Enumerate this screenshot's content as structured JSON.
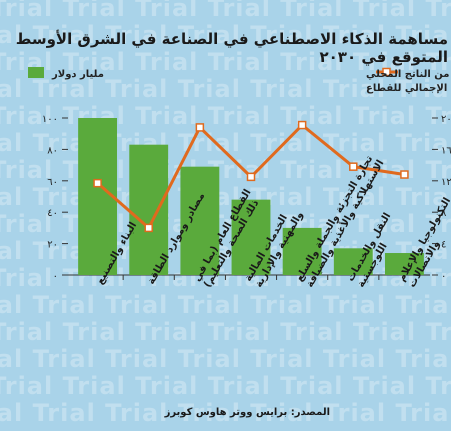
{
  "watermark": "Trial",
  "title": "مساهمة الذكاء الاصطناعي في الصناعة في الشرق الأوسط المتوقع في ٢٠٣٠",
  "source": "المصدر: برايس ووتر هاوس كوبرز",
  "colors": {
    "bar": "#5aaa3c",
    "line": "#e06a1e",
    "marker_fill": "#ffffff",
    "background": "#a9d3e9"
  },
  "chart_data": {
    "type": "bar",
    "categories": [
      "البناء والتصنيع",
      "مصادر وموارد الطاقة",
      "القطاع العام (بما في ذلك الصحة والتعليم)",
      "الخدمات المالية والمهنية والإدارية",
      "تجارة التجزئة والجملة والسلع الاستهلاكية والأغذية والضيافة",
      "النقل والخدمات اللوجستية",
      "التكنولوجيا والإعلام والاتصالات"
    ],
    "series": [
      {
        "name": "مليار دولار",
        "axis": "left",
        "type": "bar",
        "values": [
          100,
          83,
          69,
          48,
          30,
          17,
          14
        ]
      },
      {
        "name": "٪ من الناتج المحلي الإجمالي للقطاع",
        "axis": "right",
        "type": "line",
        "values": [
          11.7,
          6,
          18.8,
          12.5,
          19.1,
          13.8,
          12.8
        ]
      }
    ],
    "left_axis": {
      "ylim": [
        0,
        100
      ],
      "ticks": [
        0,
        20,
        40,
        60,
        80,
        100
      ],
      "tick_labels": [
        "٠",
        "٢٠",
        "٤٠",
        "٦٠",
        "٨٠",
        "١٠٠"
      ]
    },
    "right_axis": {
      "ylim": [
        0,
        20
      ],
      "ticks": [
        0,
        4,
        8,
        12,
        16,
        20
      ],
      "tick_labels": [
        "٠",
        "٤",
        "٨",
        "١٢",
        "١٦",
        "٢٠"
      ]
    },
    "grid": false,
    "legend": [
      "top-left",
      "top-right"
    ]
  }
}
